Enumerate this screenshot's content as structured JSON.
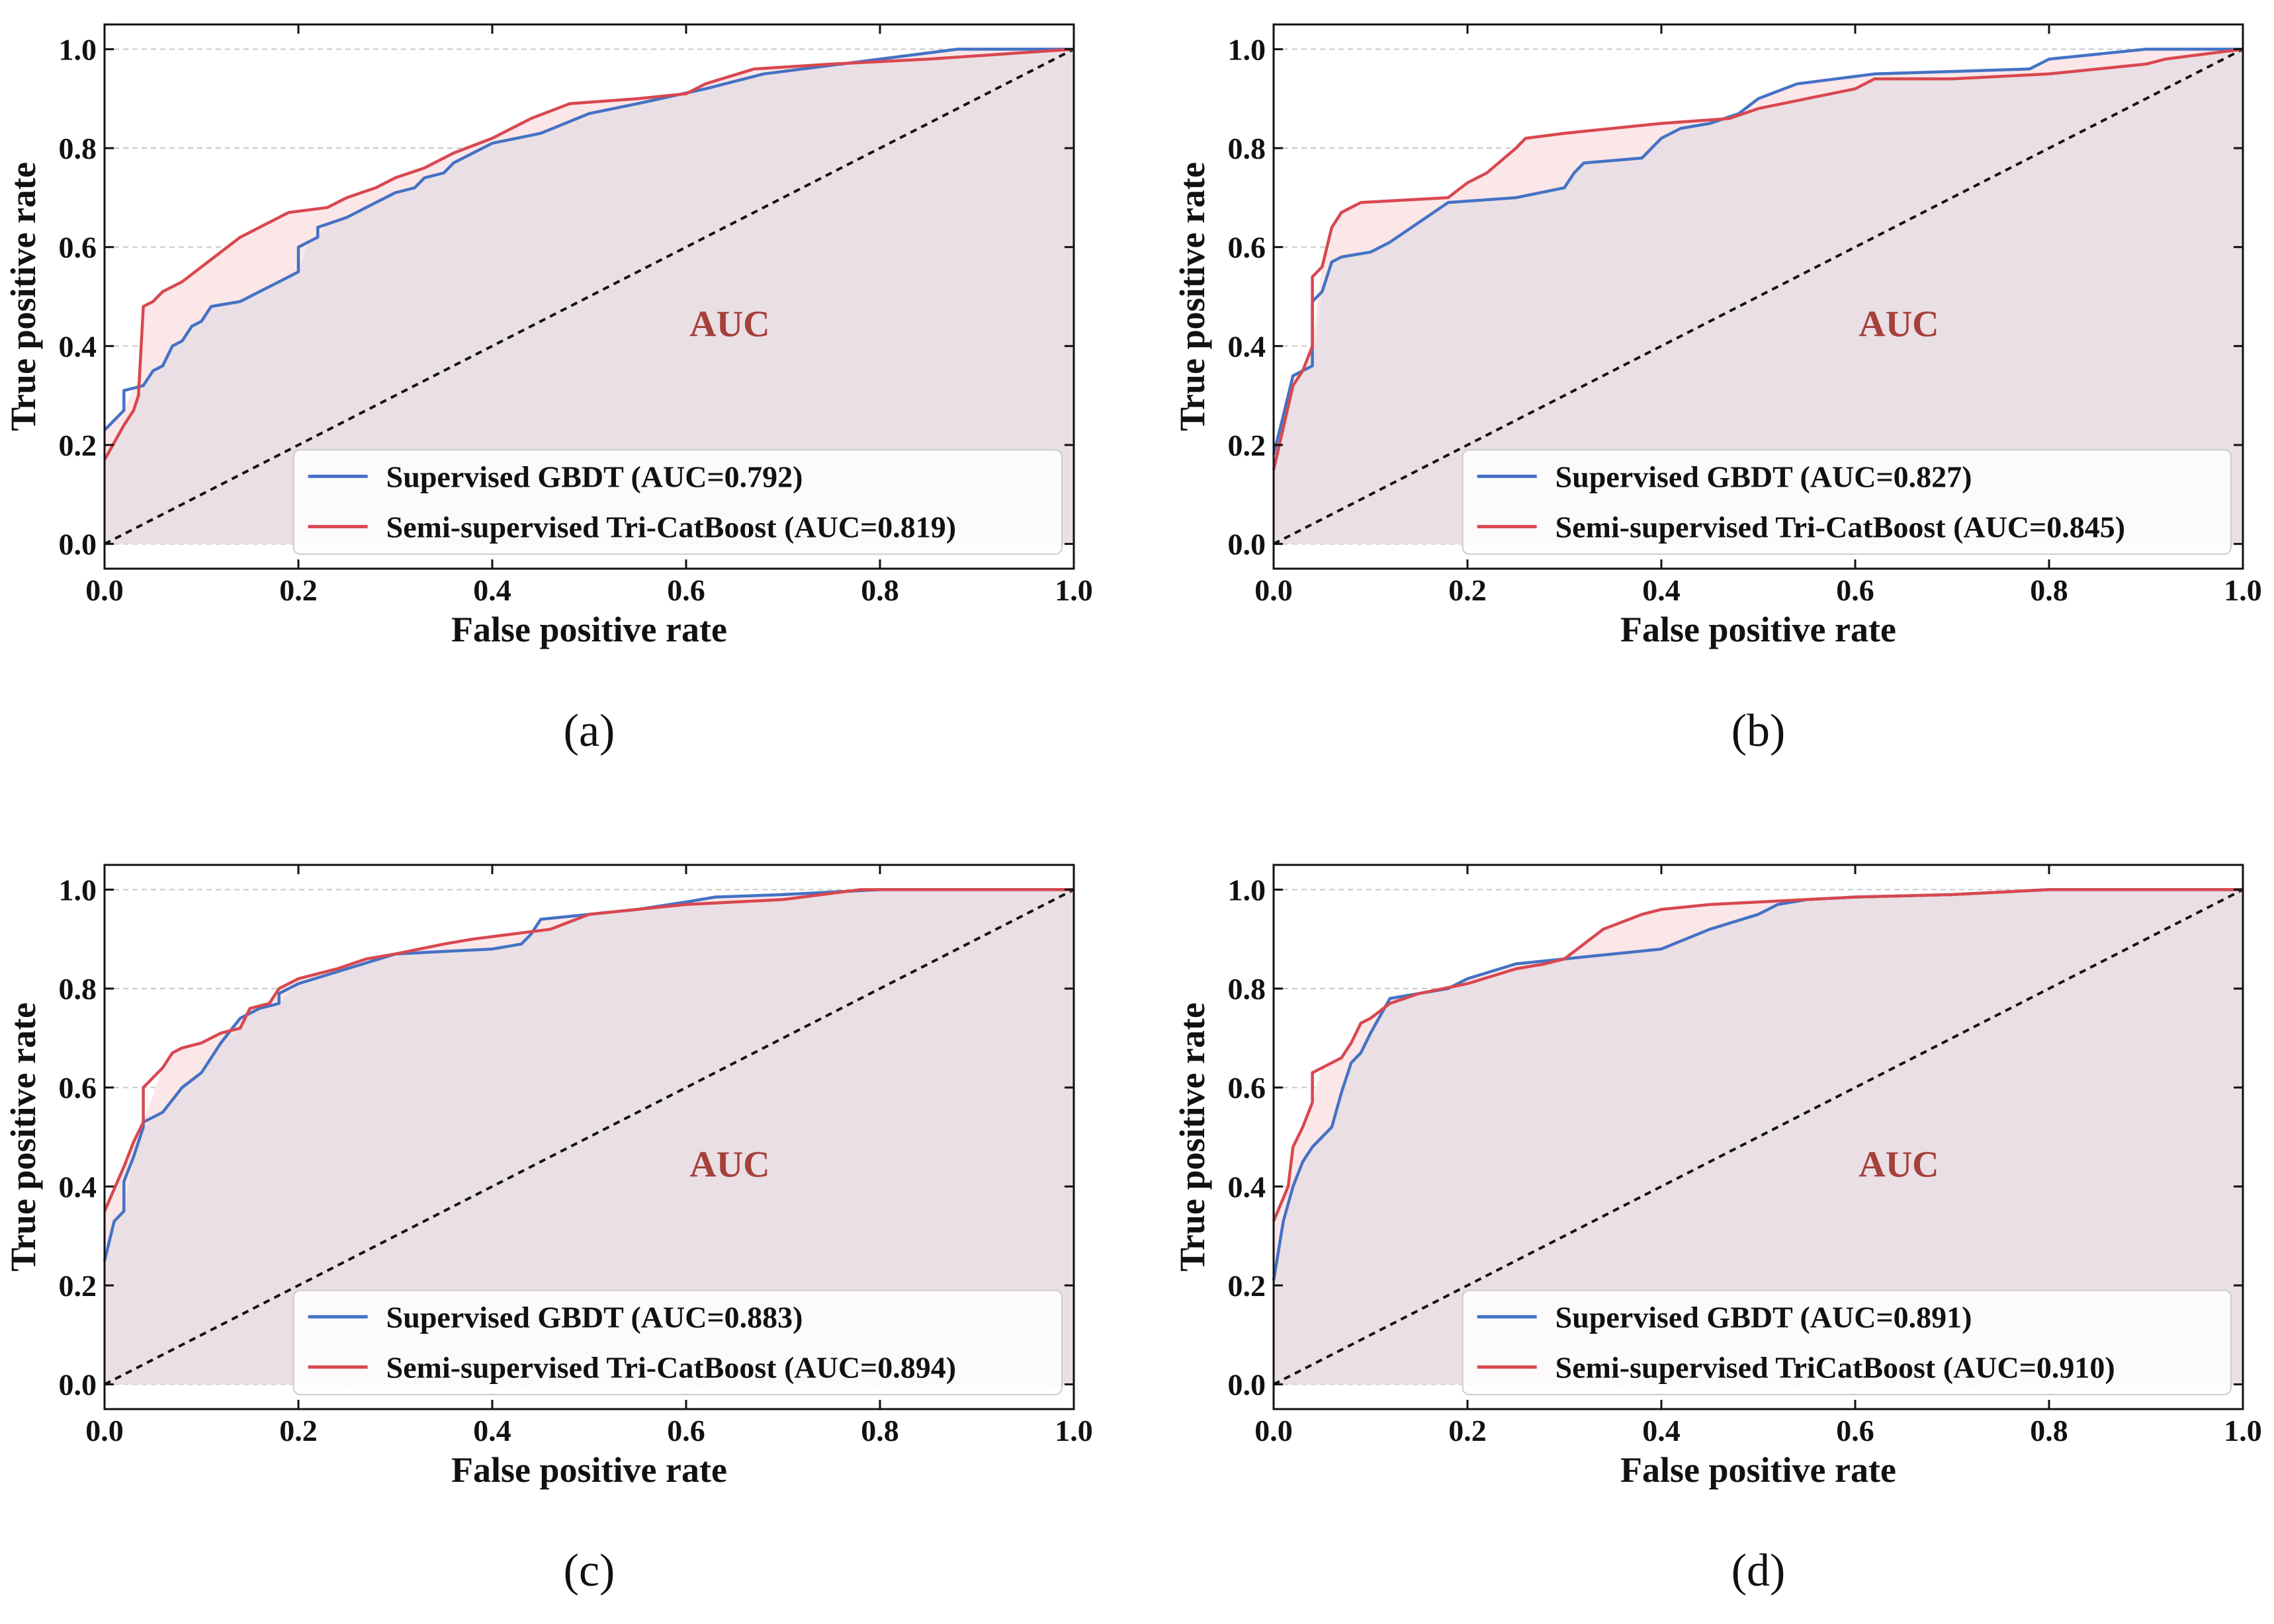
{
  "colors": {
    "supervised": "#4472c4",
    "semi": "#d9474f",
    "fill": "#e8dde3",
    "diff_fill": "#fbe3e6",
    "auc_text": "#a5403a",
    "grid": "#c8c8c8"
  },
  "chart_data": [
    {
      "type": "line",
      "panel_label": "(a)",
      "xlabel": "False positive rate",
      "ylabel": "True positive rate",
      "xlim": [
        0,
        1
      ],
      "ylim": [
        0,
        1
      ],
      "xticks": [
        "0.0",
        "0.2",
        "0.4",
        "0.6",
        "0.8",
        "1.0"
      ],
      "yticks": [
        "0.0",
        "0.2",
        "0.4",
        "0.6",
        "0.8",
        "1.0"
      ],
      "grid": "horizontal dashed",
      "annotation": "AUC",
      "legend_position": "lower-right",
      "series": [
        {
          "name": "Supervised GBDT (AUC=0.792)",
          "x": [
            0,
            0.02,
            0.02,
            0.04,
            0.05,
            0.06,
            0.07,
            0.08,
            0.09,
            0.1,
            0.11,
            0.14,
            0.16,
            0.18,
            0.19,
            0.2,
            0.2,
            0.21,
            0.22,
            0.22,
            0.25,
            0.27,
            0.28,
            0.3,
            0.32,
            0.33,
            0.35,
            0.36,
            0.37,
            0.38,
            0.4,
            0.45,
            0.5,
            0.55,
            0.62,
            0.68,
            0.8,
            0.88,
            1.0
          ],
          "y": [
            0.23,
            0.27,
            0.31,
            0.32,
            0.35,
            0.36,
            0.4,
            0.41,
            0.44,
            0.45,
            0.48,
            0.49,
            0.51,
            0.53,
            0.54,
            0.55,
            0.6,
            0.61,
            0.62,
            0.64,
            0.66,
            0.68,
            0.69,
            0.71,
            0.72,
            0.74,
            0.75,
            0.77,
            0.78,
            0.79,
            0.81,
            0.83,
            0.87,
            0.89,
            0.92,
            0.95,
            0.98,
            1.0,
            1.0
          ]
        },
        {
          "name": "Semi-supervised Tri-CatBoost (AUC=0.819)",
          "x": [
            0,
            0.02,
            0.03,
            0.035,
            0.04,
            0.05,
            0.06,
            0.08,
            0.1,
            0.12,
            0.14,
            0.16,
            0.19,
            0.23,
            0.25,
            0.28,
            0.3,
            0.33,
            0.36,
            0.4,
            0.42,
            0.44,
            0.48,
            0.55,
            0.6,
            0.62,
            0.67,
            0.75,
            0.85,
            1.0
          ],
          "y": [
            0.17,
            0.24,
            0.27,
            0.3,
            0.48,
            0.49,
            0.51,
            0.53,
            0.56,
            0.59,
            0.62,
            0.64,
            0.67,
            0.68,
            0.7,
            0.72,
            0.74,
            0.76,
            0.79,
            0.82,
            0.84,
            0.86,
            0.89,
            0.9,
            0.91,
            0.93,
            0.96,
            0.97,
            0.98,
            1.0
          ]
        }
      ]
    },
    {
      "type": "line",
      "panel_label": "(b)",
      "xlabel": "False positive rate",
      "ylabel": "True positive rate",
      "xlim": [
        0,
        1
      ],
      "ylim": [
        0,
        1
      ],
      "xticks": [
        "0.0",
        "0.2",
        "0.4",
        "0.6",
        "0.8",
        "1.0"
      ],
      "yticks": [
        "0.0",
        "0.2",
        "0.4",
        "0.6",
        "0.8",
        "1.0"
      ],
      "grid": "horizontal dashed",
      "annotation": "AUC",
      "legend_position": "lower-right",
      "series": [
        {
          "name": "Supervised GBDT (AUC=0.827)",
          "x": [
            0,
            0.01,
            0.02,
            0.03,
            0.04,
            0.04,
            0.05,
            0.06,
            0.07,
            0.1,
            0.12,
            0.18,
            0.25,
            0.3,
            0.31,
            0.32,
            0.38,
            0.4,
            0.42,
            0.45,
            0.48,
            0.5,
            0.54,
            0.58,
            0.62,
            0.7,
            0.78,
            0.8,
            0.9,
            1.0
          ],
          "y": [
            0.18,
            0.26,
            0.34,
            0.35,
            0.36,
            0.49,
            0.51,
            0.57,
            0.58,
            0.59,
            0.61,
            0.69,
            0.7,
            0.72,
            0.75,
            0.77,
            0.78,
            0.82,
            0.84,
            0.85,
            0.87,
            0.9,
            0.93,
            0.94,
            0.95,
            0.955,
            0.96,
            0.98,
            1.0,
            1.0
          ]
        },
        {
          "name": "Semi-supervised Tri-CatBoost (AUC=0.845)",
          "x": [
            0,
            0.02,
            0.03,
            0.04,
            0.04,
            0.05,
            0.06,
            0.07,
            0.09,
            0.18,
            0.2,
            0.22,
            0.25,
            0.26,
            0.3,
            0.4,
            0.47,
            0.5,
            0.55,
            0.6,
            0.62,
            0.7,
            0.8,
            0.9,
            0.92,
            1.0
          ],
          "y": [
            0.15,
            0.32,
            0.35,
            0.4,
            0.54,
            0.56,
            0.64,
            0.67,
            0.69,
            0.7,
            0.73,
            0.75,
            0.8,
            0.82,
            0.83,
            0.85,
            0.86,
            0.88,
            0.9,
            0.92,
            0.94,
            0.94,
            0.95,
            0.97,
            0.98,
            1.0
          ]
        }
      ]
    },
    {
      "type": "line",
      "panel_label": "(c)",
      "xlabel": "False positive rate",
      "ylabel": "True positive rate",
      "xlim": [
        0,
        1
      ],
      "ylim": [
        0,
        1
      ],
      "xticks": [
        "0.0",
        "0.2",
        "0.4",
        "0.6",
        "0.8",
        "1.0"
      ],
      "yticks": [
        "0.0",
        "0.2",
        "0.4",
        "0.6",
        "0.8",
        "1.0"
      ],
      "grid": "horizontal dashed",
      "annotation": "AUC",
      "legend_position": "lower-right",
      "series": [
        {
          "name": "Supervised GBDT (AUC=0.883)",
          "x": [
            0,
            0.01,
            0.02,
            0.02,
            0.03,
            0.04,
            0.04,
            0.06,
            0.08,
            0.1,
            0.12,
            0.14,
            0.16,
            0.18,
            0.18,
            0.2,
            0.25,
            0.3,
            0.35,
            0.4,
            0.43,
            0.44,
            0.45,
            0.5,
            0.55,
            0.6,
            0.63,
            0.7,
            0.8,
            1.0
          ],
          "y": [
            0.25,
            0.33,
            0.35,
            0.41,
            0.46,
            0.52,
            0.53,
            0.55,
            0.6,
            0.63,
            0.69,
            0.74,
            0.76,
            0.77,
            0.79,
            0.81,
            0.84,
            0.87,
            0.875,
            0.88,
            0.89,
            0.91,
            0.94,
            0.95,
            0.96,
            0.975,
            0.985,
            0.99,
            1.0,
            1.0
          ]
        },
        {
          "name": "Semi-supervised Tri-CatBoost (AUC=0.894)",
          "x": [
            0,
            0.02,
            0.03,
            0.04,
            0.04,
            0.06,
            0.07,
            0.08,
            0.1,
            0.12,
            0.14,
            0.15,
            0.17,
            0.18,
            0.2,
            0.24,
            0.27,
            0.3,
            0.35,
            0.38,
            0.42,
            0.46,
            0.5,
            0.55,
            0.6,
            0.7,
            0.78,
            1.0
          ],
          "y": [
            0.35,
            0.44,
            0.49,
            0.53,
            0.6,
            0.64,
            0.67,
            0.68,
            0.69,
            0.71,
            0.72,
            0.76,
            0.77,
            0.8,
            0.82,
            0.84,
            0.86,
            0.87,
            0.89,
            0.9,
            0.91,
            0.92,
            0.95,
            0.96,
            0.97,
            0.98,
            1.0,
            1.0
          ]
        }
      ]
    },
    {
      "type": "line",
      "panel_label": "(d)",
      "xlabel": "False positive rate",
      "ylabel": "True positive rate",
      "xlim": [
        0,
        1
      ],
      "ylim": [
        0,
        1
      ],
      "xticks": [
        "0.0",
        "0.2",
        "0.4",
        "0.6",
        "0.8",
        "1.0"
      ],
      "yticks": [
        "0.0",
        "0.2",
        "0.4",
        "0.6",
        "0.8",
        "1.0"
      ],
      "grid": "horizontal dashed",
      "annotation": "AUC",
      "legend_position": "lower-right",
      "series": [
        {
          "name": "Supervised GBDT (AUC=0.891)",
          "x": [
            0,
            0.01,
            0.02,
            0.03,
            0.04,
            0.05,
            0.06,
            0.07,
            0.08,
            0.09,
            0.1,
            0.12,
            0.15,
            0.18,
            0.2,
            0.25,
            0.3,
            0.35,
            0.4,
            0.45,
            0.5,
            0.52,
            0.55,
            0.6,
            0.7,
            0.8,
            1.0
          ],
          "y": [
            0.21,
            0.33,
            0.4,
            0.45,
            0.48,
            0.5,
            0.52,
            0.59,
            0.65,
            0.67,
            0.71,
            0.78,
            0.79,
            0.8,
            0.82,
            0.85,
            0.86,
            0.87,
            0.88,
            0.92,
            0.95,
            0.97,
            0.98,
            0.985,
            0.99,
            1.0,
            1.0
          ]
        },
        {
          "name": "Semi-supervised TriCatBoost (AUC=0.910)",
          "x": [
            0,
            0.015,
            0.02,
            0.03,
            0.04,
            0.04,
            0.06,
            0.07,
            0.08,
            0.09,
            0.1,
            0.12,
            0.15,
            0.2,
            0.25,
            0.28,
            0.3,
            0.34,
            0.38,
            0.4,
            0.45,
            0.5,
            0.55,
            0.6,
            0.7,
            0.8,
            1.0
          ],
          "y": [
            0.33,
            0.4,
            0.48,
            0.52,
            0.57,
            0.63,
            0.65,
            0.66,
            0.69,
            0.73,
            0.74,
            0.77,
            0.79,
            0.81,
            0.84,
            0.85,
            0.86,
            0.92,
            0.95,
            0.96,
            0.97,
            0.975,
            0.98,
            0.985,
            0.99,
            1.0,
            1.0
          ]
        }
      ]
    }
  ]
}
